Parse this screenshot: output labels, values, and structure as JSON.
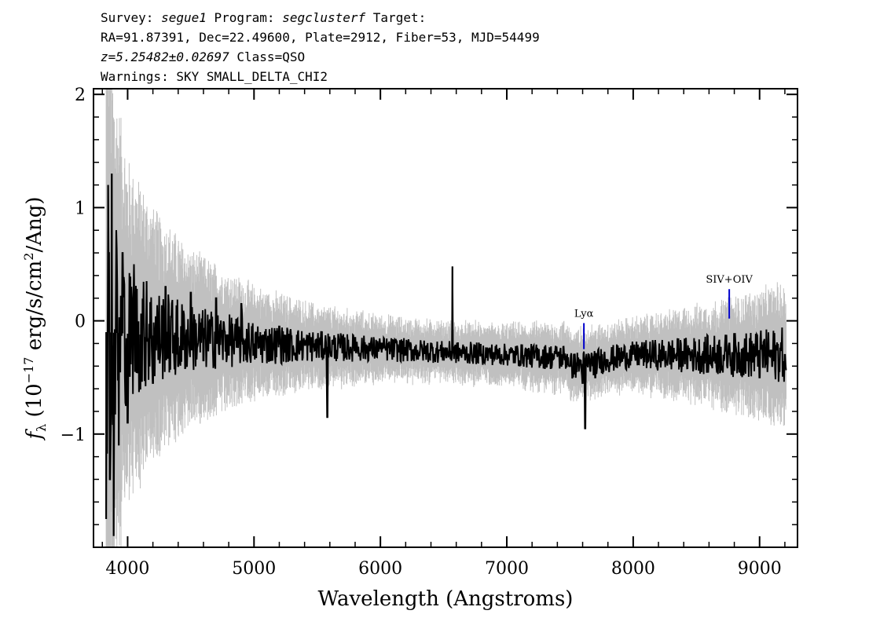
{
  "header": {
    "line1": {
      "a": "Survey: ",
      "survey": "segue1",
      "b": " Program: ",
      "program": "segclusterf",
      "c": " Target:"
    },
    "line2": "RA=91.87391, Dec=22.49600, Plate=2912, Fiber=53, MJD=54499",
    "line3": {
      "z": "z=5.25482±0.02697",
      "rest": " Class=QSO"
    },
    "line4": "Warnings: SKY SMALL_DELTA_CHI2"
  },
  "chart_data": {
    "type": "line",
    "xlabel": "Wavelength (Angstroms)",
    "ylabel": {
      "f": "f",
      "sub": "λ",
      "pre": " (10",
      "sup": "−17",
      "mid": " erg/s/cm",
      "sup2": "2",
      "post": "/Ang)"
    },
    "xlim": [
      3730,
      9300
    ],
    "ylim": [
      -2.0,
      2.05
    ],
    "x_ticks": [
      4000,
      5000,
      6000,
      7000,
      8000,
      9000
    ],
    "x_tick_labels": [
      "4000",
      "5000",
      "6000",
      "7000",
      "8000",
      "9000"
    ],
    "y_ticks": [
      -1,
      0,
      1,
      2
    ],
    "y_tick_labels": [
      "−1",
      "0",
      "1",
      "2"
    ],
    "colors": {
      "spectrum": "#000000",
      "error": "#c0c0c0",
      "line_marker": "#0000cc"
    },
    "series": [
      {
        "role": "flux",
        "x": [
          3830,
          3845,
          3860,
          3875,
          3890,
          3910,
          3930,
          3960,
          4000,
          4050,
          4100,
          4150,
          4200,
          4300,
          4400,
          4500,
          4600,
          4700,
          4800,
          4900,
          5000,
          5200,
          5400,
          5580,
          5800,
          6000,
          6200,
          6400,
          6570,
          6800,
          7000,
          7250,
          7400,
          7500,
          7600,
          7620,
          7700,
          7800,
          8000,
          8200,
          8400,
          8600,
          8760,
          8900,
          9000,
          9100,
          9200
        ],
        "y": [
          -1.75,
          1.2,
          -1.4,
          1.3,
          -1.9,
          0.8,
          -1.1,
          0.6,
          -0.9,
          0.5,
          -0.6,
          0.35,
          -0.55,
          0.3,
          -0.4,
          0.25,
          -0.35,
          0.2,
          -0.3,
          0.15,
          -0.25,
          -0.05,
          -0.2,
          -0.85,
          -0.15,
          -0.2,
          -0.3,
          -0.2,
          0.48,
          -0.3,
          -0.3,
          -0.35,
          -0.3,
          -0.4,
          -0.55,
          -0.95,
          -0.5,
          -0.4,
          -0.25,
          -0.35,
          -0.3,
          -0.35,
          -0.2,
          -0.35,
          -0.5,
          -0.4,
          -0.3
        ]
      },
      {
        "role": "error_band",
        "x": [
          3830,
          3900,
          4000,
          4200,
          4500,
          5000,
          5500,
          6000,
          6500,
          7000,
          7500,
          8000,
          8500,
          9000,
          9200
        ],
        "halfwidth": [
          2.0,
          1.6,
          1.1,
          0.8,
          0.55,
          0.35,
          0.25,
          0.2,
          0.18,
          0.18,
          0.22,
          0.22,
          0.3,
          0.4,
          0.45
        ]
      }
    ],
    "annotations": [
      {
        "label": "Lyα",
        "x": 7610,
        "y_top": -0.02,
        "y_bottom": -0.25
      },
      {
        "label": "SIV+OIV",
        "x": 8760,
        "y_top": 0.28,
        "y_bottom": 0.02
      }
    ]
  }
}
